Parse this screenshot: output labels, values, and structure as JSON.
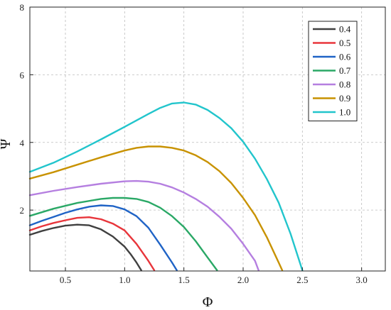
{
  "chart_data": {
    "type": "line",
    "title": "",
    "xlabel": "Φ",
    "ylabel": "Ψ",
    "xlim": [
      0.2,
      3.2
    ],
    "ylim": [
      0.2,
      8
    ],
    "x_ticks": [
      "0.5",
      "1.0",
      "1.5",
      "2.0",
      "2.5",
      "3.0"
    ],
    "y_ticks": [
      "2",
      "4",
      "6",
      "8"
    ],
    "grid": true,
    "legend_position": "top-right",
    "series": [
      {
        "name": "0.4",
        "color": "#404040",
        "x": [
          0.2,
          0.3,
          0.4,
          0.5,
          0.6,
          0.7,
          0.8,
          0.9,
          1.0,
          1.05,
          1.1,
          1.14
        ],
        "y": [
          1.27,
          1.38,
          1.47,
          1.54,
          1.57,
          1.55,
          1.43,
          1.22,
          0.92,
          0.7,
          0.45,
          0.22
        ]
      },
      {
        "name": "0.5",
        "color": "#e8353b",
        "x": [
          0.2,
          0.3,
          0.4,
          0.5,
          0.6,
          0.7,
          0.8,
          0.9,
          1.0,
          1.1,
          1.2,
          1.25
        ],
        "y": [
          1.4,
          1.52,
          1.62,
          1.7,
          1.77,
          1.79,
          1.73,
          1.6,
          1.4,
          1.0,
          0.5,
          0.22
        ]
      },
      {
        "name": "0.6",
        "color": "#1f63c6",
        "x": [
          0.2,
          0.3,
          0.4,
          0.5,
          0.6,
          0.7,
          0.8,
          0.9,
          1.0,
          1.1,
          1.2,
          1.3,
          1.4,
          1.44
        ],
        "y": [
          1.55,
          1.68,
          1.8,
          1.92,
          2.02,
          2.1,
          2.14,
          2.12,
          2.02,
          1.82,
          1.48,
          0.98,
          0.45,
          0.22
        ]
      },
      {
        "name": "0.7",
        "color": "#2aa866",
        "x": [
          0.2,
          0.4,
          0.6,
          0.8,
          0.9,
          1.0,
          1.1,
          1.2,
          1.3,
          1.4,
          1.5,
          1.6,
          1.7,
          1.78
        ],
        "y": [
          1.83,
          2.04,
          2.21,
          2.33,
          2.36,
          2.36,
          2.33,
          2.24,
          2.07,
          1.82,
          1.5,
          1.08,
          0.6,
          0.22
        ]
      },
      {
        "name": "0.8",
        "color": "#b57fe0",
        "x": [
          0.2,
          0.4,
          0.6,
          0.8,
          1.0,
          1.1,
          1.2,
          1.3,
          1.4,
          1.5,
          1.6,
          1.7,
          1.8,
          1.9,
          2.0,
          2.1,
          2.13
        ],
        "y": [
          2.44,
          2.57,
          2.68,
          2.78,
          2.85,
          2.86,
          2.84,
          2.78,
          2.67,
          2.52,
          2.33,
          2.1,
          1.8,
          1.45,
          1.0,
          0.5,
          0.22
        ]
      },
      {
        "name": "0.9",
        "color": "#c89200",
        "x": [
          0.2,
          0.4,
          0.6,
          0.8,
          1.0,
          1.1,
          1.2,
          1.3,
          1.4,
          1.5,
          1.6,
          1.7,
          1.8,
          1.9,
          2.0,
          2.1,
          2.2,
          2.3,
          2.33
        ],
        "y": [
          2.93,
          3.12,
          3.34,
          3.56,
          3.76,
          3.84,
          3.88,
          3.88,
          3.84,
          3.76,
          3.62,
          3.42,
          3.15,
          2.8,
          2.36,
          1.85,
          1.2,
          0.45,
          0.22
        ]
      },
      {
        "name": "1.0",
        "color": "#22c5cc",
        "x": [
          0.2,
          0.4,
          0.6,
          0.8,
          1.0,
          1.2,
          1.3,
          1.4,
          1.5,
          1.6,
          1.7,
          1.8,
          1.9,
          2.0,
          2.1,
          2.2,
          2.3,
          2.4,
          2.5
        ],
        "y": [
          3.13,
          3.4,
          3.73,
          4.09,
          4.46,
          4.84,
          5.02,
          5.15,
          5.18,
          5.12,
          4.96,
          4.72,
          4.42,
          4.02,
          3.52,
          2.92,
          2.22,
          1.3,
          0.22
        ]
      }
    ]
  }
}
